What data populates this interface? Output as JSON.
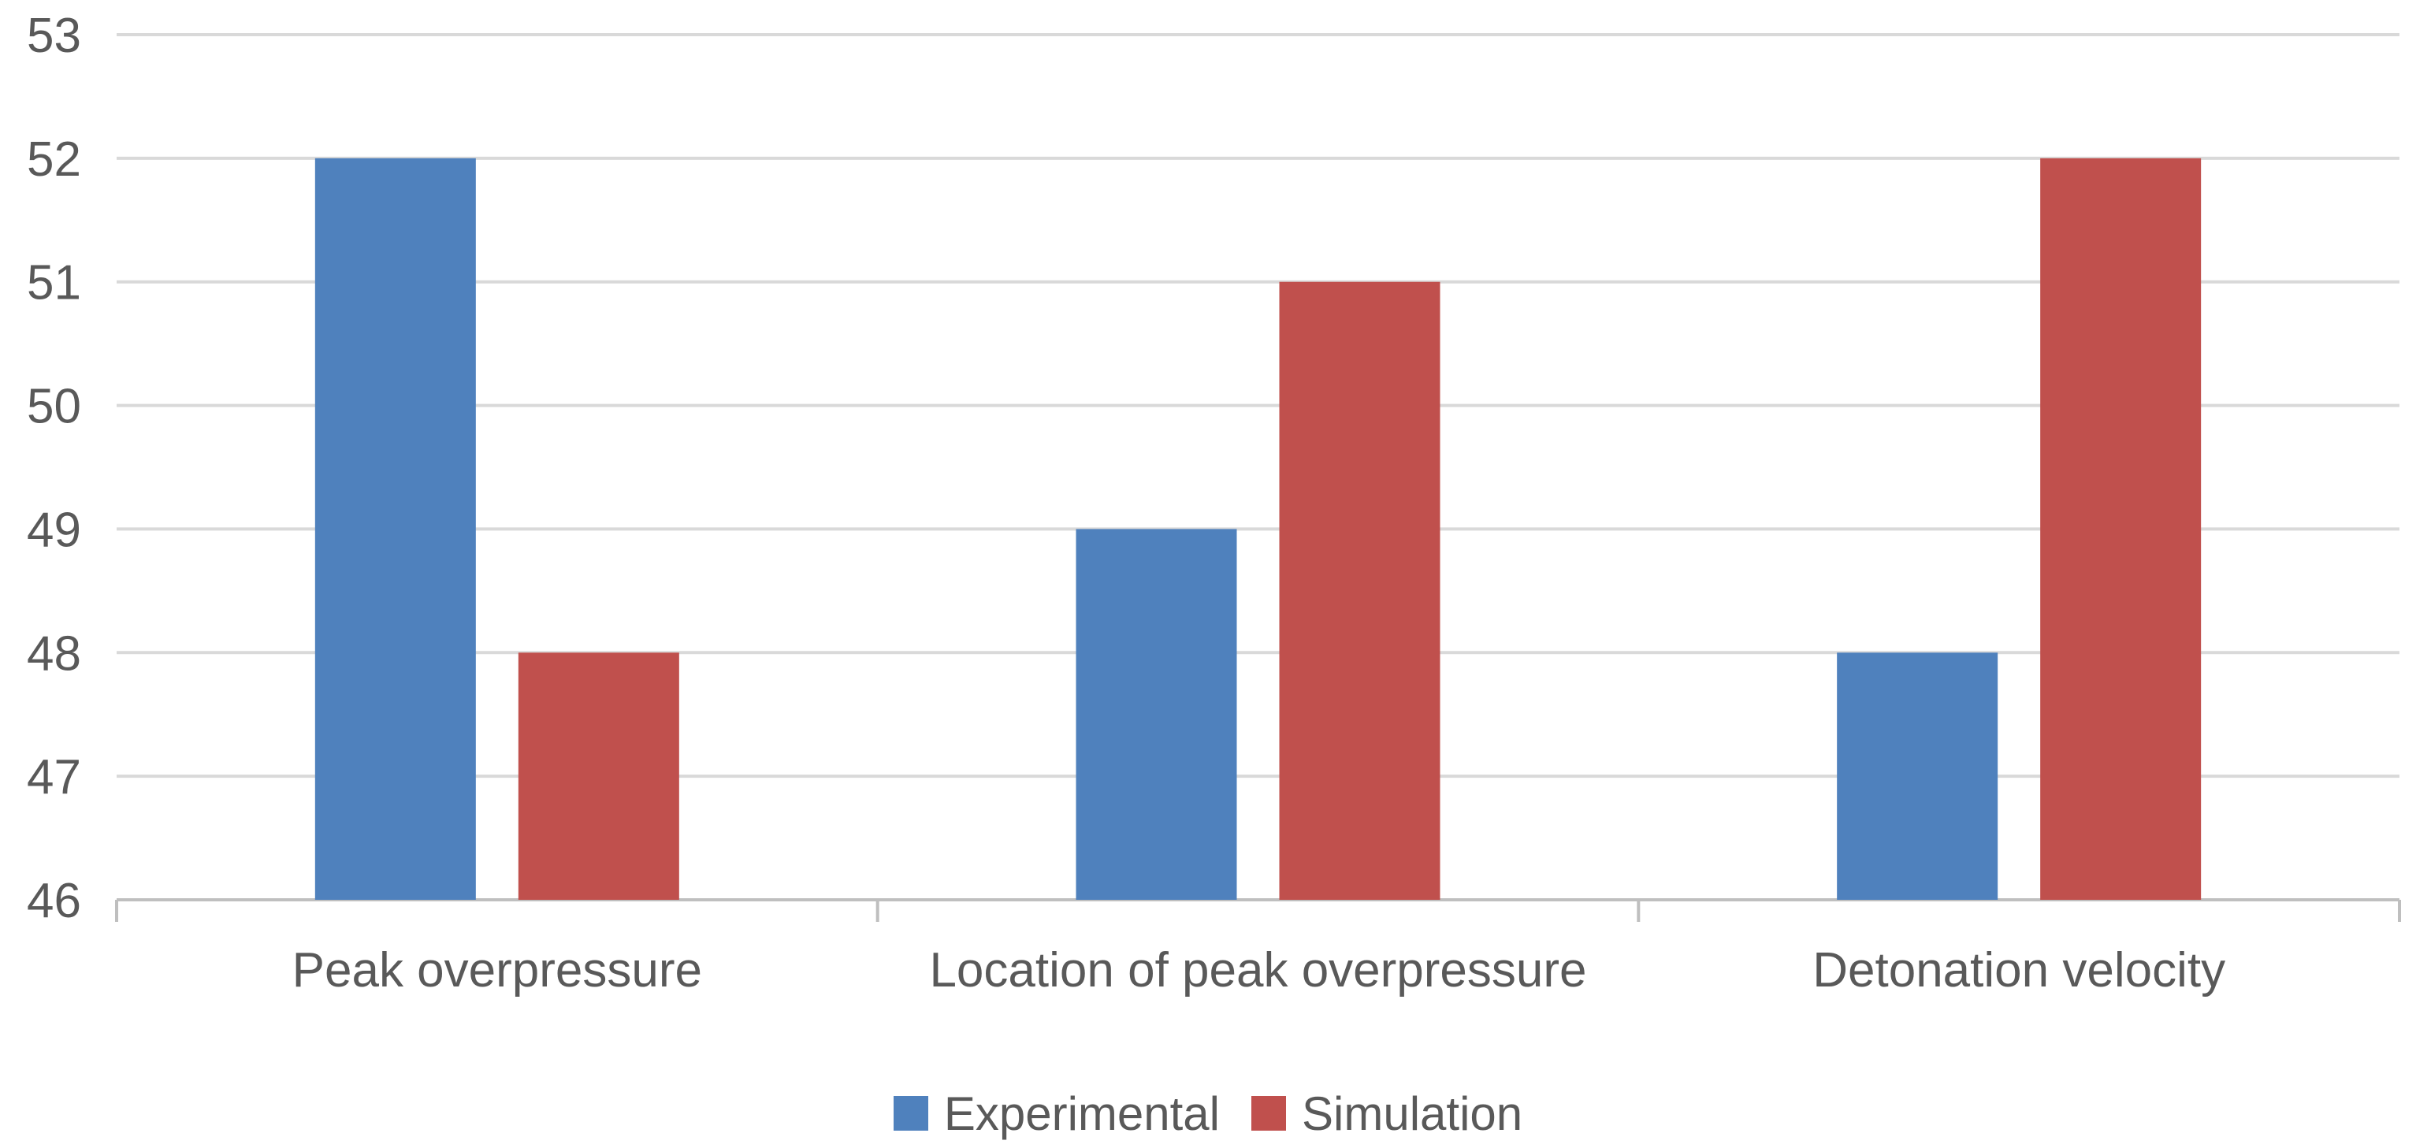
{
  "chart_data": {
    "type": "bar",
    "title": "",
    "xlabel": "",
    "ylabel": "",
    "categories": [
      "Peak overpressure",
      "Location of peak overpressure",
      "Detonation velocity"
    ],
    "series": [
      {
        "name": "Experimental",
        "color": "#4F81BD",
        "values": [
          52,
          49,
          48
        ]
      },
      {
        "name": "Simulation",
        "color": "#C0504D",
        "values": [
          48,
          51,
          52
        ]
      }
    ],
    "ylim": [
      46,
      53
    ],
    "yticks": [
      "46",
      "47",
      "48",
      "49",
      "50",
      "51",
      "52",
      "53"
    ],
    "grid": true,
    "legend_position": "bottom"
  }
}
